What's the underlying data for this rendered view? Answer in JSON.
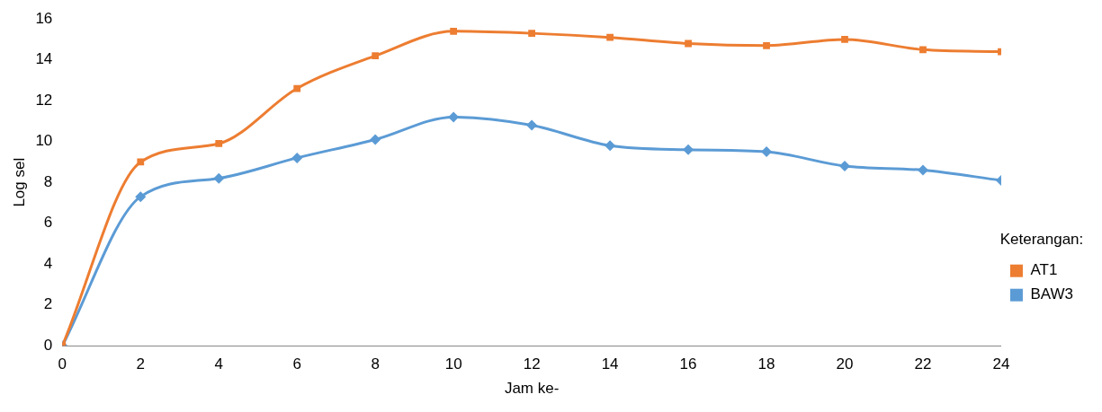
{
  "chart_data": {
    "type": "line",
    "xlabel": "Jam ke-",
    "ylabel": "Log sel",
    "legend_title": "Keterangan:",
    "legend": "right",
    "x": [
      0,
      2,
      4,
      6,
      8,
      10,
      12,
      14,
      16,
      18,
      20,
      22,
      24
    ],
    "xlim": [
      0,
      24
    ],
    "xticks": [
      0,
      2,
      4,
      6,
      8,
      10,
      12,
      14,
      16,
      18,
      20,
      22,
      24
    ],
    "ylim": [
      0,
      16
    ],
    "yticks": [
      0,
      2,
      4,
      6,
      8,
      10,
      12,
      14,
      16
    ],
    "grid": false,
    "series": [
      {
        "name": "AT1",
        "color": "#ed7d31",
        "marker": "square",
        "values": [
          0,
          9.0,
          9.9,
          12.6,
          14.2,
          15.4,
          15.3,
          15.1,
          14.8,
          14.7,
          15.0,
          14.5,
          14.4
        ]
      },
      {
        "name": "BAW3",
        "color": "#5b9bd5",
        "marker": "diamond",
        "values": [
          0,
          7.3,
          8.2,
          9.2,
          10.1,
          11.2,
          10.8,
          9.8,
          9.6,
          9.5,
          8.8,
          8.6,
          8.1
        ]
      }
    ]
  }
}
